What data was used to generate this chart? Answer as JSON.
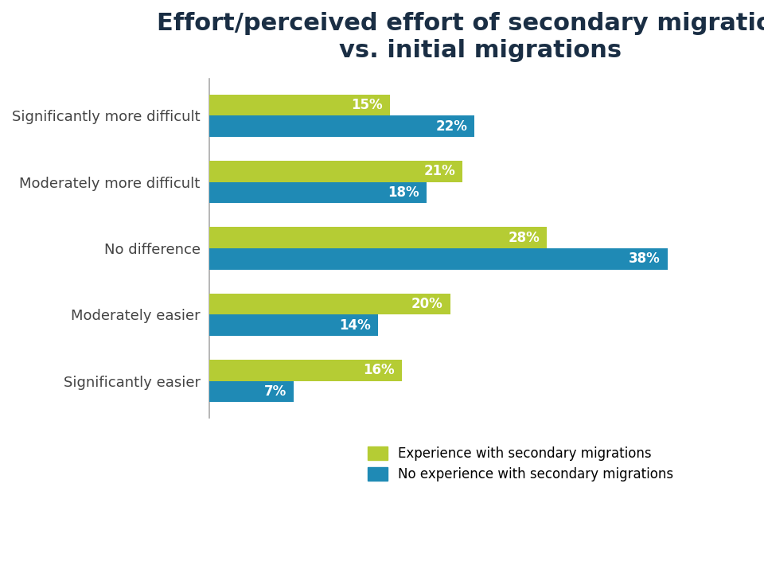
{
  "title": "Effort/perceived effort of secondary migrations\nvs. initial migrations",
  "categories": [
    "Significantly more difficult",
    "Moderately more difficult",
    "No difference",
    "Moderately easier",
    "Significantly easier"
  ],
  "secondary_values": [
    15,
    21,
    28,
    20,
    16
  ],
  "no_secondary_values": [
    22,
    18,
    38,
    14,
    7
  ],
  "secondary_color": "#b5cc34",
  "no_secondary_color": "#1f8ab5",
  "legend_labels": [
    "Experience with secondary migrations",
    "No experience with secondary migrations"
  ],
  "title_fontsize": 22,
  "label_fontsize": 13,
  "bar_label_fontsize": 12,
  "background_color": "#ffffff",
  "bar_height": 0.32,
  "xlim": [
    0,
    45
  ]
}
